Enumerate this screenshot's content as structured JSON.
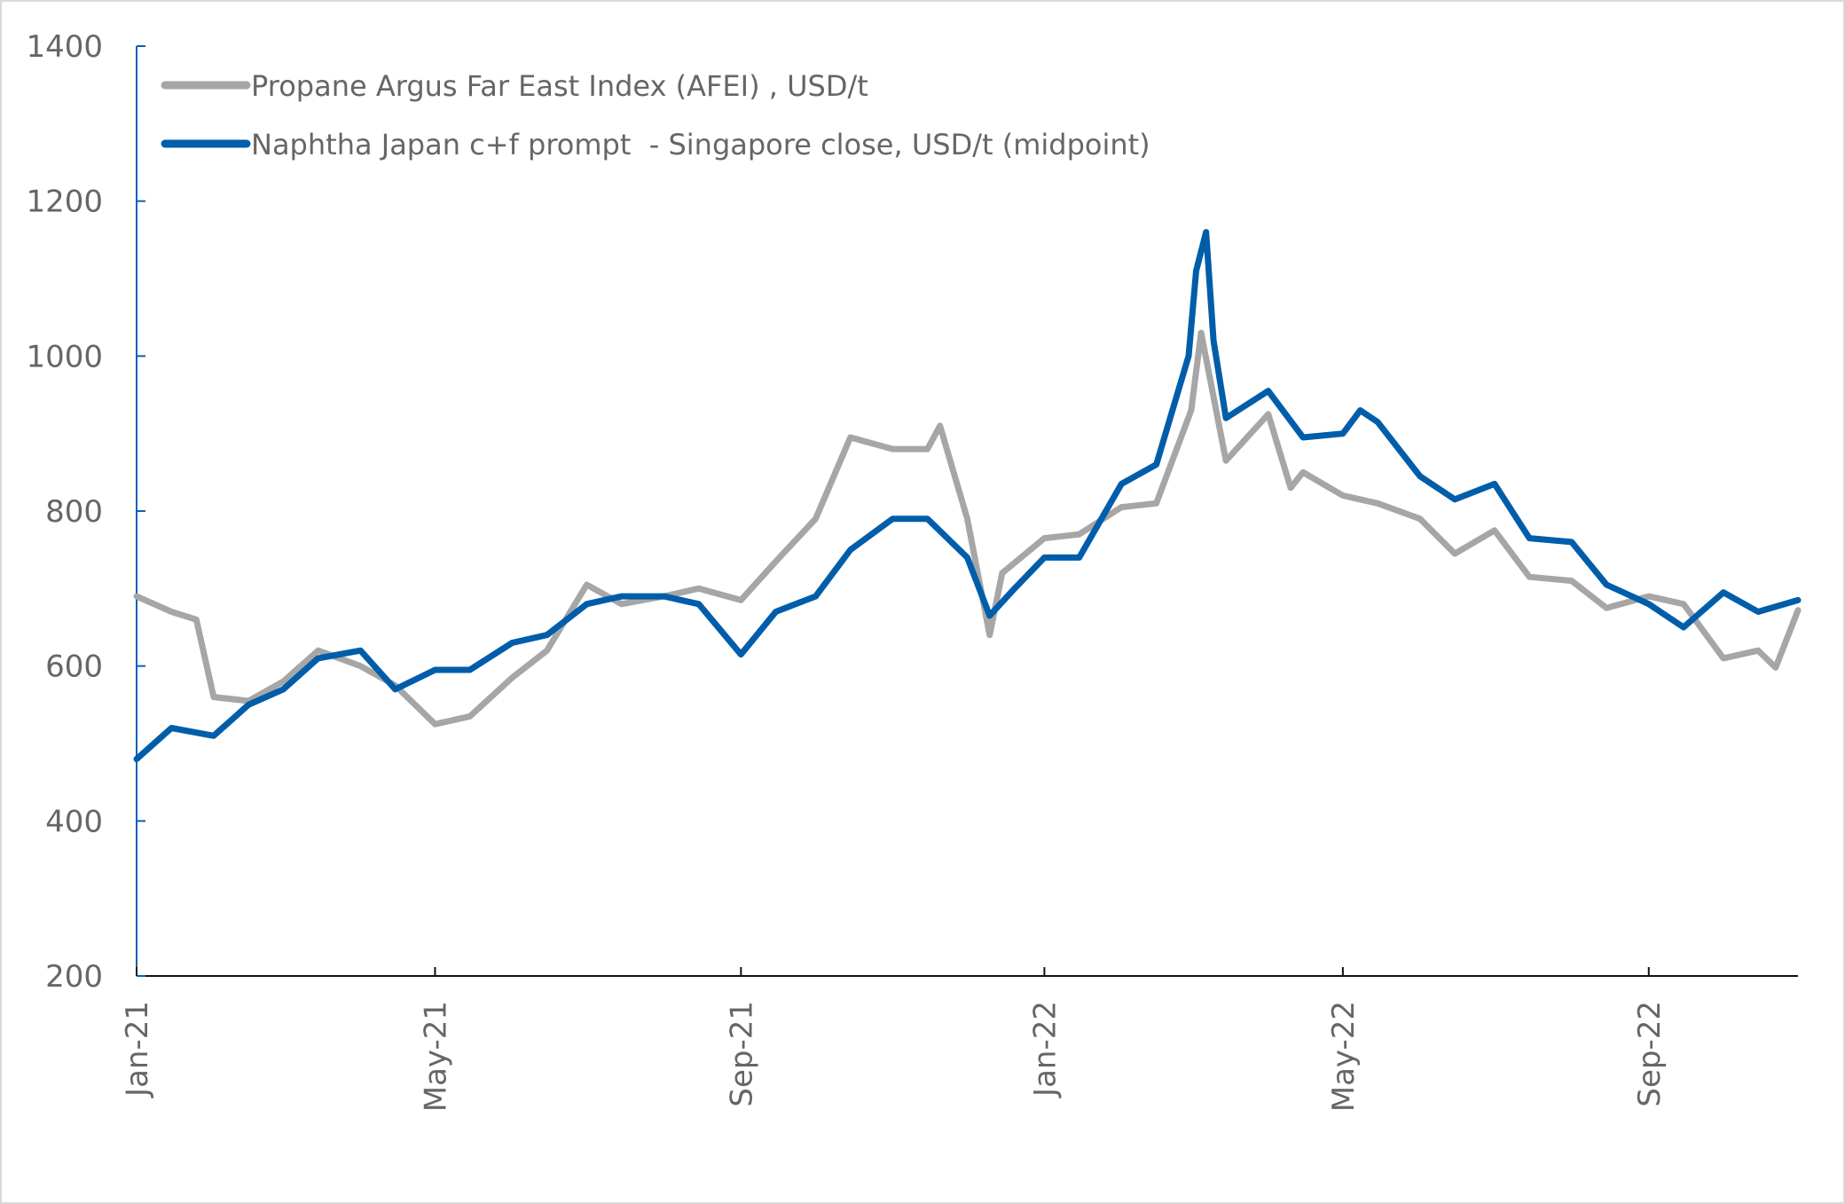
{
  "chart_data": {
    "type": "line",
    "title": "",
    "xlabel": "",
    "ylabel": "",
    "ylim": [
      200,
      1400
    ],
    "yticks": [
      "200",
      "400",
      "600",
      "800",
      "1000",
      "1200",
      "1400"
    ],
    "xlim": [
      "2021-01-01",
      "2022-10-31"
    ],
    "xticks": [
      {
        "date": "2021-01-01",
        "label": "Jan-21"
      },
      {
        "date": "2021-05-01",
        "label": "May-21"
      },
      {
        "date": "2021-09-01",
        "label": "Sep-21"
      },
      {
        "date": "2022-01-01",
        "label": "Jan-22"
      },
      {
        "date": "2022-05-01",
        "label": "May-22"
      },
      {
        "date": "2022-09-01",
        "label": "Sep-22"
      }
    ],
    "grid": false,
    "legend_position": "top-left",
    "series": [
      {
        "name": "Propane Argus Far East Index (AFEI) , USD/t",
        "color": "#a6a6a6",
        "points": [
          [
            "2021-01-01",
            690
          ],
          [
            "2021-01-15",
            670
          ],
          [
            "2021-01-25",
            660
          ],
          [
            "2021-02-01",
            560
          ],
          [
            "2021-02-15",
            555
          ],
          [
            "2021-03-01",
            580
          ],
          [
            "2021-03-15",
            620
          ],
          [
            "2021-04-01",
            600
          ],
          [
            "2021-04-15",
            575
          ],
          [
            "2021-05-01",
            525
          ],
          [
            "2021-05-15",
            535
          ],
          [
            "2021-06-01",
            585
          ],
          [
            "2021-06-15",
            620
          ],
          [
            "2021-07-01",
            705
          ],
          [
            "2021-07-15",
            680
          ],
          [
            "2021-08-01",
            690
          ],
          [
            "2021-08-15",
            700
          ],
          [
            "2021-09-01",
            685
          ],
          [
            "2021-09-15",
            735
          ],
          [
            "2021-10-01",
            790
          ],
          [
            "2021-10-15",
            895
          ],
          [
            "2021-11-01",
            880
          ],
          [
            "2021-11-15",
            880
          ],
          [
            "2021-11-20",
            910
          ],
          [
            "2021-12-01",
            790
          ],
          [
            "2021-12-10",
            640
          ],
          [
            "2021-12-15",
            720
          ],
          [
            "2022-01-01",
            765
          ],
          [
            "2022-01-15",
            770
          ],
          [
            "2022-02-01",
            805
          ],
          [
            "2022-02-15",
            810
          ],
          [
            "2022-03-01",
            930
          ],
          [
            "2022-03-05",
            1030
          ],
          [
            "2022-03-15",
            865
          ],
          [
            "2022-04-01",
            925
          ],
          [
            "2022-04-10",
            830
          ],
          [
            "2022-04-15",
            850
          ],
          [
            "2022-05-01",
            820
          ],
          [
            "2022-05-15",
            810
          ],
          [
            "2022-06-01",
            790
          ],
          [
            "2022-06-15",
            745
          ],
          [
            "2022-07-01",
            775
          ],
          [
            "2022-07-15",
            715
          ],
          [
            "2022-08-01",
            710
          ],
          [
            "2022-08-15",
            675
          ],
          [
            "2022-09-01",
            690
          ],
          [
            "2022-09-15",
            680
          ],
          [
            "2022-10-01",
            610
          ],
          [
            "2022-10-15",
            620
          ],
          [
            "2022-10-22",
            598
          ],
          [
            "2022-10-31",
            672
          ]
        ]
      },
      {
        "name": "Naphtha Japan c+f prompt  - Singapore close, USD/t (midpoint)",
        "color": "#005daa",
        "points": [
          [
            "2021-01-01",
            480
          ],
          [
            "2021-01-15",
            520
          ],
          [
            "2021-02-01",
            510
          ],
          [
            "2021-02-15",
            550
          ],
          [
            "2021-03-01",
            570
          ],
          [
            "2021-03-15",
            610
          ],
          [
            "2021-04-01",
            620
          ],
          [
            "2021-04-15",
            570
          ],
          [
            "2021-05-01",
            595
          ],
          [
            "2021-05-15",
            595
          ],
          [
            "2021-06-01",
            630
          ],
          [
            "2021-06-15",
            640
          ],
          [
            "2021-07-01",
            680
          ],
          [
            "2021-07-15",
            690
          ],
          [
            "2021-08-01",
            690
          ],
          [
            "2021-08-15",
            680
          ],
          [
            "2021-09-01",
            615
          ],
          [
            "2021-09-15",
            670
          ],
          [
            "2021-10-01",
            690
          ],
          [
            "2021-10-15",
            750
          ],
          [
            "2021-11-01",
            790
          ],
          [
            "2021-11-15",
            790
          ],
          [
            "2021-12-01",
            740
          ],
          [
            "2021-12-10",
            665
          ],
          [
            "2021-12-20",
            700
          ],
          [
            "2022-01-01",
            740
          ],
          [
            "2022-01-15",
            740
          ],
          [
            "2022-02-01",
            835
          ],
          [
            "2022-02-15",
            860
          ],
          [
            "2022-02-28",
            1000
          ],
          [
            "2022-03-03",
            1110
          ],
          [
            "2022-03-07",
            1160
          ],
          [
            "2022-03-10",
            1020
          ],
          [
            "2022-03-15",
            920
          ],
          [
            "2022-04-01",
            955
          ],
          [
            "2022-04-15",
            895
          ],
          [
            "2022-05-01",
            900
          ],
          [
            "2022-05-08",
            930
          ],
          [
            "2022-05-15",
            915
          ],
          [
            "2022-06-01",
            845
          ],
          [
            "2022-06-15",
            815
          ],
          [
            "2022-07-01",
            835
          ],
          [
            "2022-07-15",
            765
          ],
          [
            "2022-08-01",
            760
          ],
          [
            "2022-08-15",
            705
          ],
          [
            "2022-09-01",
            680
          ],
          [
            "2022-09-15",
            650
          ],
          [
            "2022-10-01",
            695
          ],
          [
            "2022-10-15",
            670
          ],
          [
            "2022-10-31",
            685
          ]
        ]
      }
    ]
  }
}
